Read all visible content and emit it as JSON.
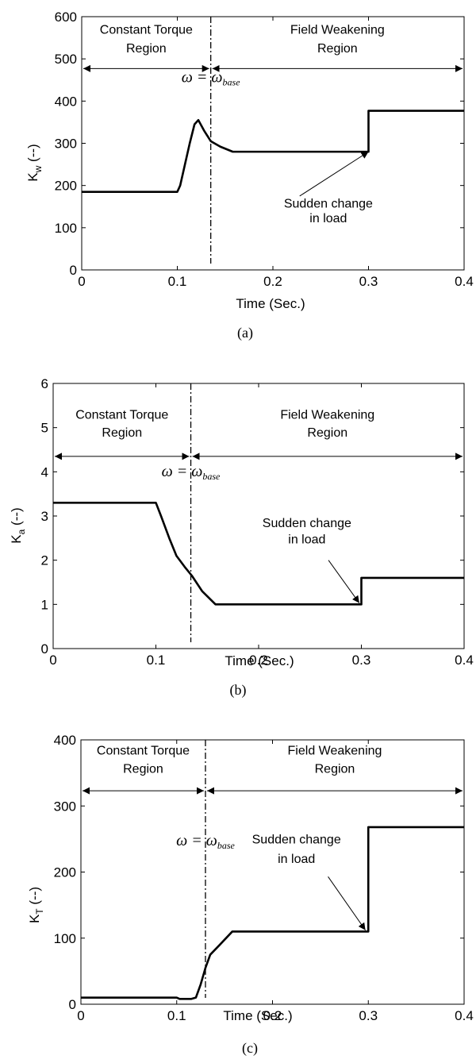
{
  "chart_data": [
    {
      "type": "line",
      "caption": "(a)",
      "xlabel": "Time (Sec.)",
      "ylabel": "K",
      "ylabel_sub": "w",
      "ylabel_unit": " (--)",
      "xlim": [
        0,
        0.4
      ],
      "ylim": [
        0,
        600
      ],
      "xticks": [
        0,
        0.1,
        0.2,
        0.3,
        0.4
      ],
      "xtick_labels": [
        "0",
        "0.1",
        "0.2",
        "0.3",
        "0.4"
      ],
      "yticks": [
        0,
        100,
        200,
        300,
        400,
        500,
        600
      ],
      "ytick_labels": [
        "0",
        "100",
        "200",
        "300",
        "400",
        "500",
        "600"
      ],
      "grid": false,
      "series": [
        {
          "x": [
            0,
            0.1,
            0.103,
            0.108,
            0.113,
            0.118,
            0.122,
            0.128,
            0.135,
            0.145,
            0.158,
            0.3,
            0.3,
            0.4
          ],
          "y": [
            185,
            185,
            200,
            250,
            300,
            345,
            355,
            330,
            305,
            292,
            280,
            280,
            377,
            377
          ]
        }
      ],
      "base_line_x": 0.135,
      "omega_y": 445,
      "region_y": 477,
      "regions": {
        "left_l1": "Constant Torque",
        "left_l2": "Region",
        "right_l1": "Field Weakening",
        "right_l2": "Region"
      },
      "region_text_y": [
        560,
        515
      ],
      "annotation": {
        "line1": "Sudden change",
        "line2": "in load",
        "text_x": 0.258,
        "text_y": [
          148,
          113
        ],
        "arrow_from": [
          0.228,
          175
        ],
        "arrow_to": [
          0.3,
          280
        ]
      }
    },
    {
      "type": "line",
      "caption": "(b)",
      "xlabel": "Time (Sec.)",
      "ylabel": "K",
      "ylabel_sub": "a",
      "ylabel_unit": " (--)",
      "xlim": [
        0,
        0.4
      ],
      "ylim": [
        0,
        6
      ],
      "xticks": [
        0,
        0.1,
        0.2,
        0.3,
        0.4
      ],
      "xtick_labels": [
        "0",
        "0.1",
        "0.2",
        "0.3",
        "0.4"
      ],
      "yticks": [
        0,
        1,
        2,
        3,
        4,
        5,
        6
      ],
      "ytick_labels": [
        "0",
        "1",
        "2",
        "3",
        "4",
        "5",
        "6"
      ],
      "grid": false,
      "series": [
        {
          "x": [
            0,
            0.1,
            0.105,
            0.113,
            0.12,
            0.128,
            0.135,
            0.145,
            0.158,
            0.3,
            0.3,
            0.4
          ],
          "y": [
            3.3,
            3.3,
            3.0,
            2.5,
            2.1,
            1.85,
            1.65,
            1.3,
            1.0,
            1.0,
            1.6,
            1.6
          ]
        }
      ],
      "base_line_x": 0.134,
      "omega_y": 3.9,
      "region_y": 4.35,
      "regions": {
        "left_l1": "Constant Torque",
        "left_l2": "Region",
        "right_l1": "Field Weakening",
        "right_l2": "Region"
      },
      "region_text_y": [
        5.2,
        4.8
      ],
      "annotation": {
        "line1": "Sudden change",
        "line2": "in load",
        "text_x": 0.247,
        "text_y": [
          2.75,
          2.38
        ],
        "arrow_from": [
          0.268,
          2.0
        ],
        "arrow_to": [
          0.298,
          1.03
        ]
      }
    },
    {
      "type": "line",
      "caption": "(c)",
      "xlabel": "Time (Sec.)",
      "ylabel": "K",
      "ylabel_sub": "T",
      "ylabel_unit": " (--)",
      "xlim": [
        0,
        0.4
      ],
      "ylim": [
        0,
        400
      ],
      "xticks": [
        0,
        0.1,
        0.2,
        0.3,
        0.4
      ],
      "xtick_labels": [
        "0",
        "0.1",
        "0.2",
        "0.3",
        "0.4"
      ],
      "yticks": [
        0,
        100,
        200,
        300,
        400
      ],
      "ytick_labels": [
        "0",
        "100",
        "200",
        "300",
        "400"
      ],
      "grid": false,
      "series": [
        {
          "x": [
            0,
            0.1,
            0.103,
            0.115,
            0.12,
            0.125,
            0.13,
            0.135,
            0.145,
            0.158,
            0.3,
            0.3,
            0.4
          ],
          "y": [
            10,
            10,
            8,
            8,
            10,
            30,
            55,
            75,
            90,
            110,
            110,
            268,
            268
          ]
        }
      ],
      "base_line_x": 0.13,
      "omega_y": 240,
      "region_y": 323,
      "regions": {
        "left_l1": "Constant Torque",
        "left_l2": "Region",
        "right_l1": "Field Weakening",
        "right_l2": "Region"
      },
      "region_text_y": [
        378,
        350
      ],
      "annotation": {
        "line1": "Sudden change",
        "line2": "in load",
        "text_x": 0.225,
        "text_y": [
          243,
          214
        ],
        "arrow_from": [
          0.258,
          193
        ],
        "arrow_to": [
          0.297,
          112
        ]
      }
    }
  ],
  "omega_lhs": "ω",
  "omega_eq": " = ",
  "omega_rhs": "ω",
  "omega_sub": "base"
}
